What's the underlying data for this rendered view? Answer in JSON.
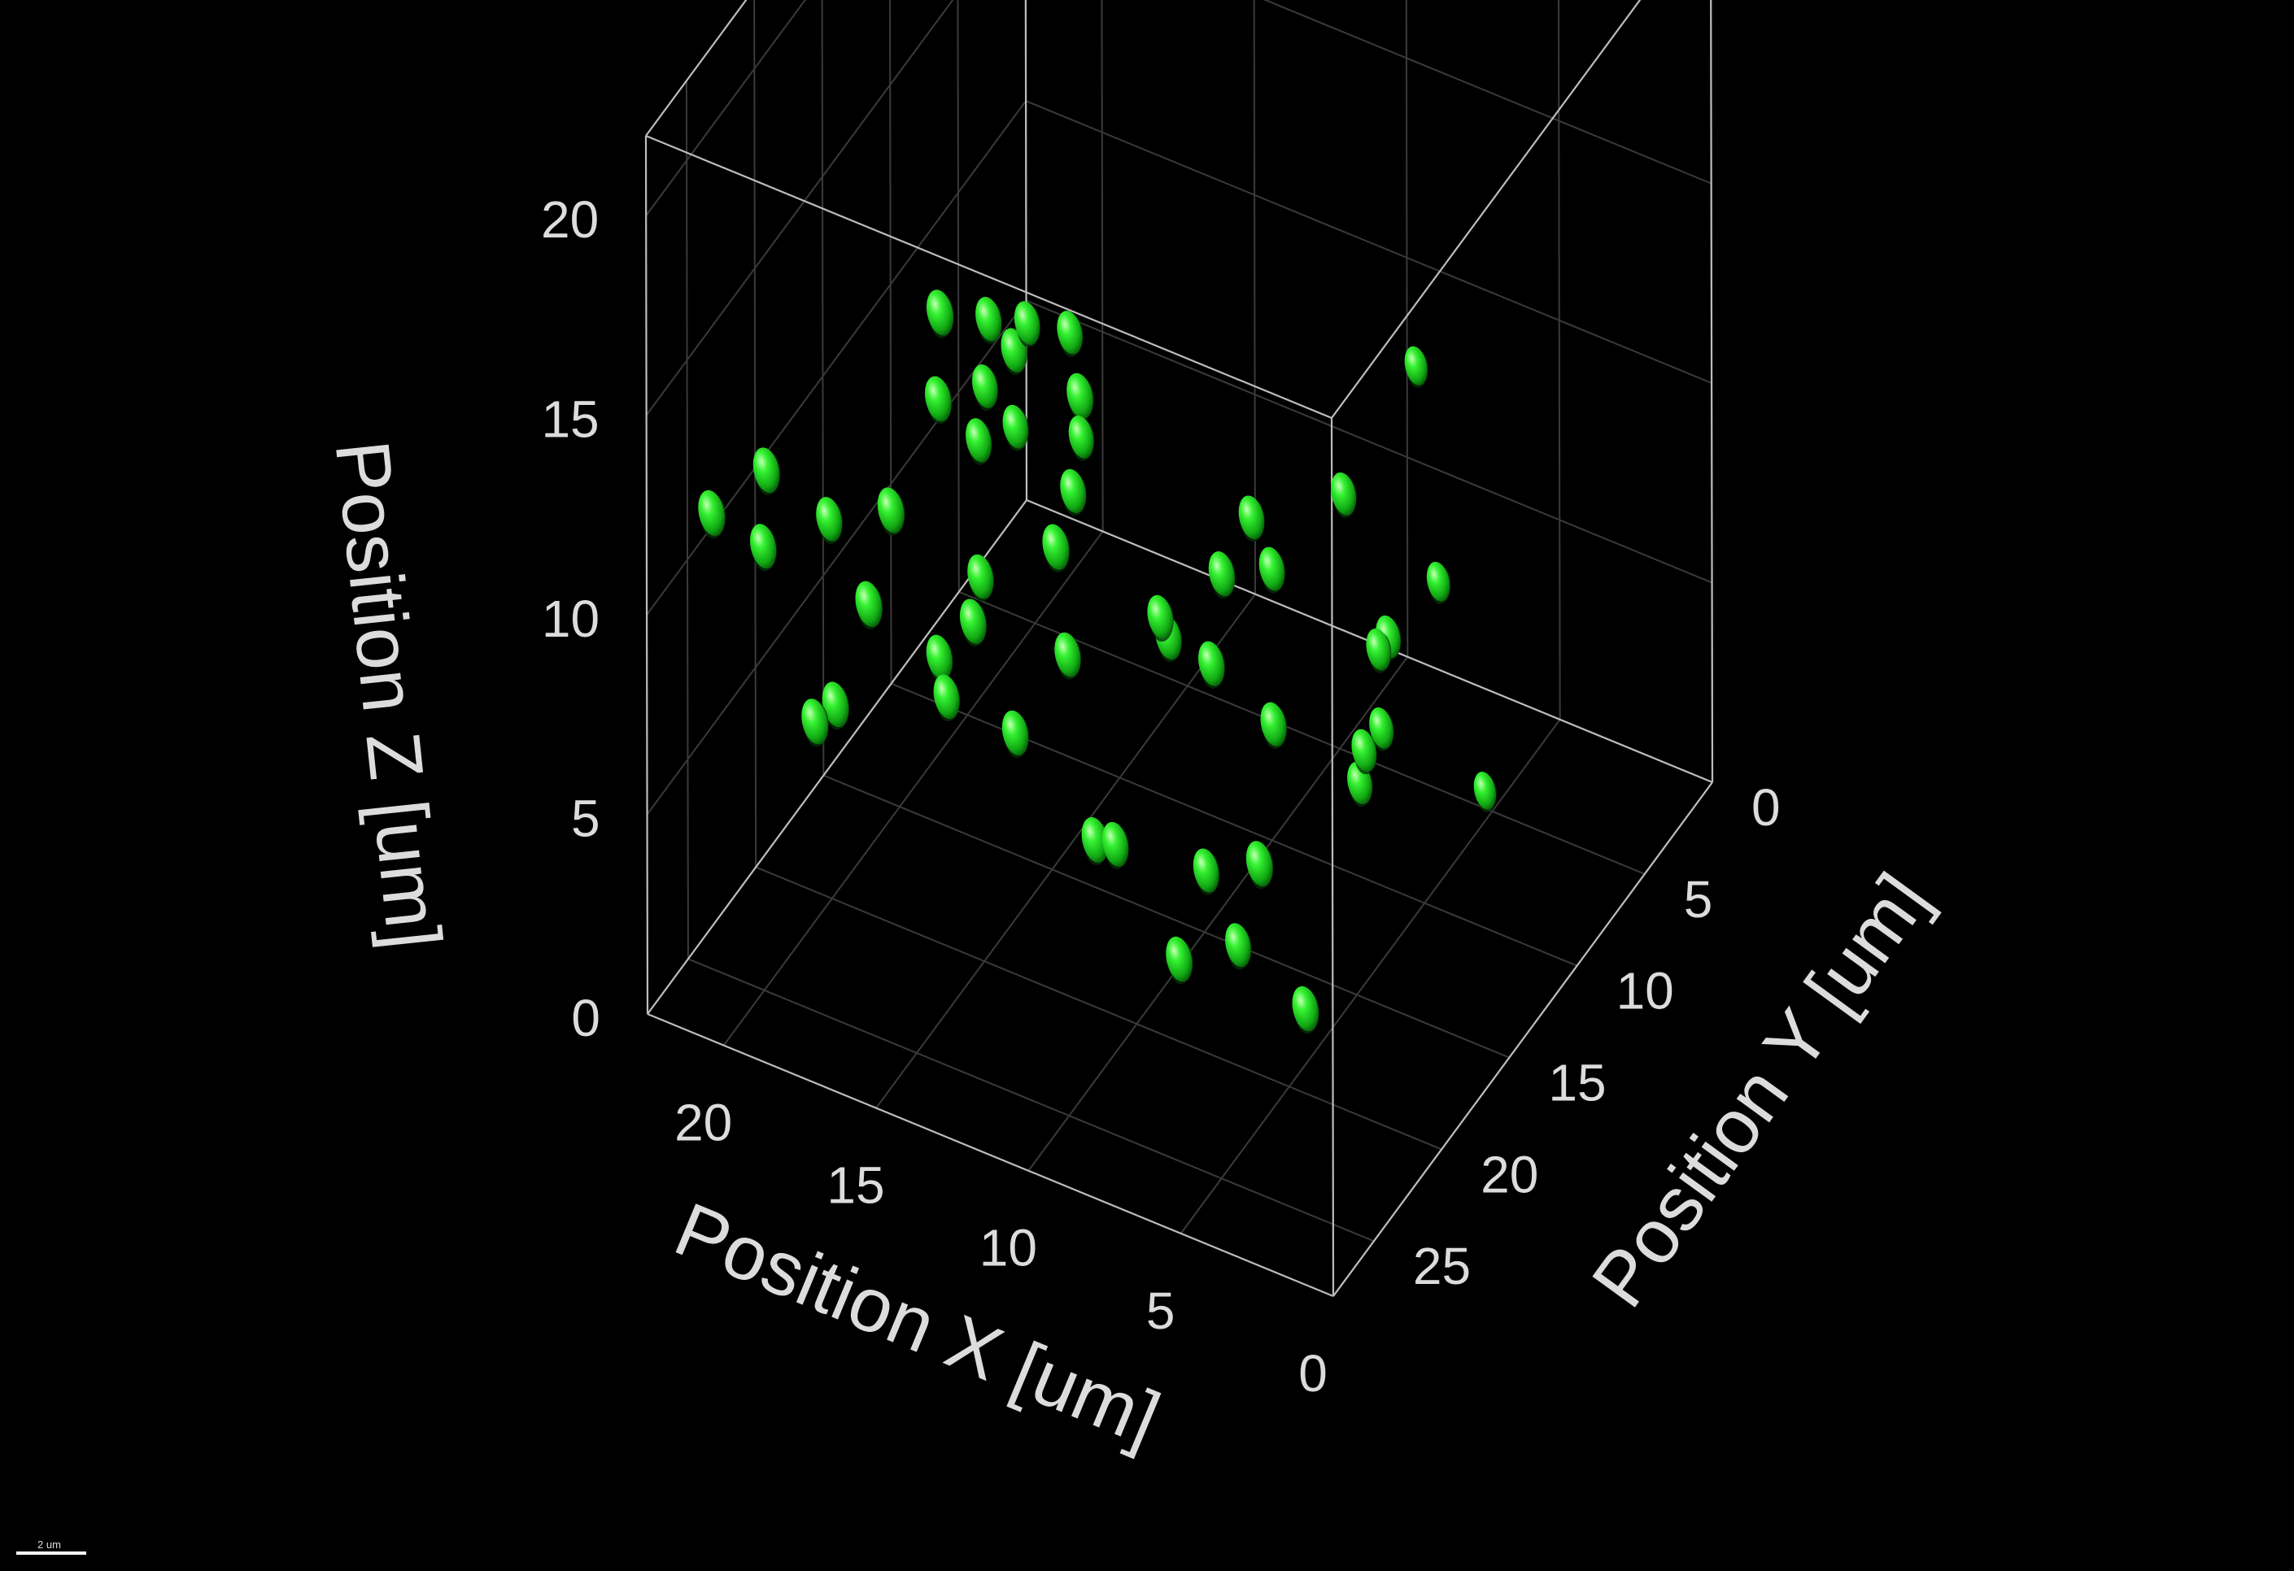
{
  "chart_data": {
    "type": "scatter",
    "projection": "3d",
    "title": "",
    "colors": {
      "background": "#000000",
      "box": "#bdbdbd",
      "grid": "#3a3a3a",
      "point": "#22e022",
      "text": "#dcdcdc"
    },
    "axes": {
      "x": {
        "label": "Position X [um]",
        "ticks": [
          0,
          5,
          10,
          15,
          20
        ],
        "range": [
          0,
          22.5
        ]
      },
      "y": {
        "label": "Position Y [um]",
        "ticks": [
          0,
          5,
          10,
          15,
          20,
          25
        ],
        "range": [
          0,
          28
        ]
      },
      "z": {
        "label": "Position Z [um]",
        "ticks": [
          0,
          5,
          10,
          15,
          20
        ],
        "range": [
          0,
          22
        ]
      }
    },
    "grid": true,
    "marker": "ellipsoid",
    "points": [
      {
        "x": 20.1,
        "y": 24.8,
        "z": 11.0
      },
      {
        "x": 20.9,
        "y": 26.8,
        "z": 12.5
      },
      {
        "x": 19.5,
        "y": 25.9,
        "z": 13.6
      },
      {
        "x": 17.7,
        "y": 26.4,
        "z": 8.1
      },
      {
        "x": 17.2,
        "y": 26.0,
        "z": 8.5
      },
      {
        "x": 18.2,
        "y": 24.2,
        "z": 12.0
      },
      {
        "x": 15.7,
        "y": 26.9,
        "z": 11.9
      },
      {
        "x": 15.1,
        "y": 26.6,
        "z": 14.3
      },
      {
        "x": 14.5,
        "y": 24.4,
        "z": 9.8
      },
      {
        "x": 14.4,
        "y": 24.1,
        "z": 8.7
      },
      {
        "x": 13.9,
        "y": 25.8,
        "z": 17.1
      },
      {
        "x": 13.6,
        "y": 23.5,
        "z": 15.1
      },
      {
        "x": 13.3,
        "y": 27.0,
        "z": 20.0
      },
      {
        "x": 13.1,
        "y": 24.5,
        "z": 12.3
      },
      {
        "x": 12.7,
        "y": 22.8,
        "z": 15.4
      },
      {
        "x": 13.0,
        "y": 24.1,
        "z": 18.6
      },
      {
        "x": 12.4,
        "y": 22.6,
        "z": 18.0
      },
      {
        "x": 12.9,
        "y": 25.5,
        "z": 11.7
      },
      {
        "x": 11.7,
        "y": 25.1,
        "z": 9.1
      },
      {
        "x": 12.3,
        "y": 23.8,
        "z": 17.9
      },
      {
        "x": 13.7,
        "y": 22.8,
        "z": 16.1
      },
      {
        "x": 11.0,
        "y": 22.6,
        "z": 18.2
      },
      {
        "x": 11.3,
        "y": 21.1,
        "z": 14.8
      },
      {
        "x": 10.5,
        "y": 23.5,
        "z": 14.8
      },
      {
        "x": 10.2,
        "y": 24.6,
        "z": 11.3
      },
      {
        "x": 9.2,
        "y": 25.9,
        "z": 18.7
      },
      {
        "x": 9.6,
        "y": 26.8,
        "z": 15.2
      },
      {
        "x": 8.6,
        "y": 26.2,
        "z": 7.9
      },
      {
        "x": 8.6,
        "y": 24.7,
        "z": 7.1
      },
      {
        "x": 6.8,
        "y": 24.8,
        "z": 12.9
      },
      {
        "x": 7.6,
        "y": 23.6,
        "z": 12.6
      },
      {
        "x": 6.2,
        "y": 25.4,
        "z": 5.3
      },
      {
        "x": 6.2,
        "y": 23.4,
        "z": 6.6
      },
      {
        "x": 5.3,
        "y": 25.0,
        "z": 12.8
      },
      {
        "x": 5.2,
        "y": 23.3,
        "z": 5.0
      },
      {
        "x": 5.0,
        "y": 24.9,
        "z": 15.1
      },
      {
        "x": 5.0,
        "y": 22.7,
        "z": 15.5
      },
      {
        "x": 4.2,
        "y": 23.0,
        "z": 14.6
      },
      {
        "x": 3.8,
        "y": 23.8,
        "z": 11.2
      },
      {
        "x": 2.6,
        "y": 21.3,
        "z": 16.2
      },
      {
        "x": 3.2,
        "y": 26.2,
        "z": 9.0
      },
      {
        "x": 2.1,
        "y": 25.3,
        "z": 5.3
      },
      {
        "x": 1.5,
        "y": 20.5,
        "z": 12.6
      },
      {
        "x": 2.3,
        "y": 20.5,
        "z": 9.5
      },
      {
        "x": 2.4,
        "y": 19.2,
        "z": 11.4
      },
      {
        "x": 2.8,
        "y": 18.1,
        "z": 8.8
      },
      {
        "x": 2.4,
        "y": 20.6,
        "z": 8.7
      },
      {
        "x": 2.3,
        "y": 15.0,
        "z": 11.2
      },
      {
        "x": 2.3,
        "y": 11.6,
        "z": 4.4
      },
      {
        "x": 3.6,
        "y": 13.7,
        "z": 15.6
      }
    ]
  },
  "scale_bar": {
    "label": "2 um"
  }
}
